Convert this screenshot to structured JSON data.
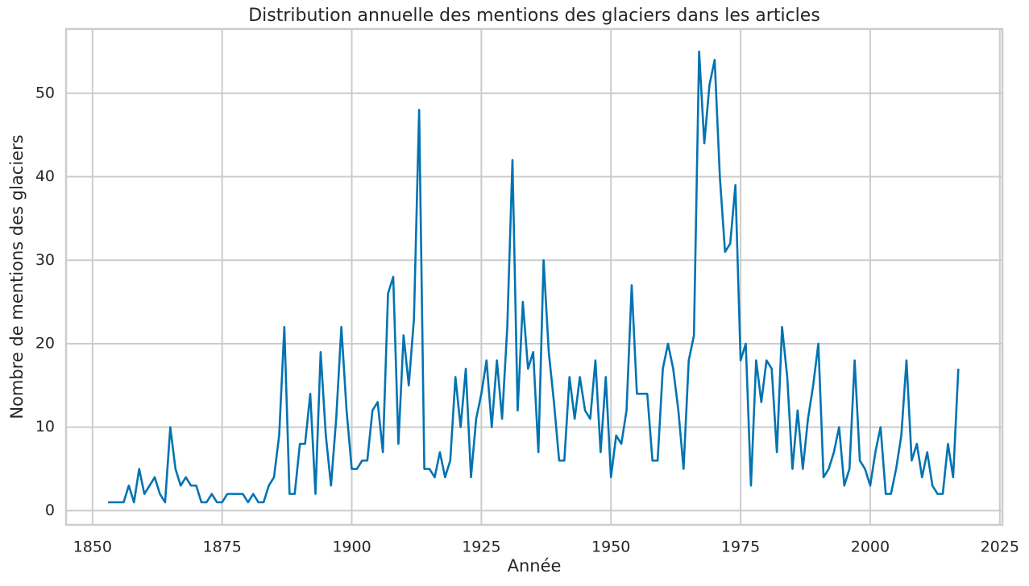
{
  "chart_data": {
    "type": "line",
    "title": "Distribution annuelle des mentions des glaciers dans les articles",
    "xlabel": "Année",
    "ylabel": "Nombre de mentions des glaciers",
    "x": [
      1853,
      1854,
      1855,
      1856,
      1857,
      1858,
      1859,
      1860,
      1861,
      1862,
      1863,
      1864,
      1865,
      1866,
      1867,
      1868,
      1869,
      1870,
      1871,
      1872,
      1873,
      1874,
      1875,
      1876,
      1877,
      1878,
      1879,
      1880,
      1881,
      1882,
      1883,
      1884,
      1885,
      1886,
      1887,
      1888,
      1889,
      1890,
      1891,
      1892,
      1893,
      1894,
      1895,
      1896,
      1897,
      1898,
      1899,
      1900,
      1901,
      1902,
      1903,
      1904,
      1905,
      1906,
      1907,
      1908,
      1909,
      1910,
      1911,
      1912,
      1913,
      1914,
      1915,
      1916,
      1917,
      1918,
      1919,
      1920,
      1921,
      1922,
      1923,
      1924,
      1925,
      1926,
      1927,
      1928,
      1929,
      1930,
      1931,
      1932,
      1933,
      1934,
      1935,
      1936,
      1937,
      1938,
      1939,
      1940,
      1941,
      1942,
      1943,
      1944,
      1945,
      1946,
      1947,
      1948,
      1949,
      1950,
      1951,
      1952,
      1953,
      1954,
      1955,
      1956,
      1957,
      1958,
      1959,
      1960,
      1961,
      1962,
      1963,
      1964,
      1965,
      1966,
      1967,
      1968,
      1969,
      1970,
      1971,
      1972,
      1973,
      1974,
      1975,
      1976,
      1977,
      1978,
      1979,
      1980,
      1981,
      1982,
      1983,
      1984,
      1985,
      1986,
      1987,
      1988,
      1989,
      1990,
      1991,
      1992,
      1993,
      1994,
      1995,
      1996,
      1997,
      1998,
      1999,
      2000,
      2001,
      2002,
      2003,
      2004,
      2005,
      2006,
      2007,
      2008,
      2009,
      2010,
      2011,
      2012,
      2013,
      2014,
      2015,
      2016,
      2017
    ],
    "series": [
      {
        "name": "mentions",
        "color": "#0173b2",
        "values": [
          1,
          1,
          1,
          1,
          3,
          1,
          5,
          2,
          3,
          4,
          2,
          1,
          10,
          5,
          3,
          4,
          3,
          3,
          1,
          1,
          2,
          1,
          1,
          2,
          2,
          2,
          2,
          1,
          2,
          1,
          1,
          3,
          4,
          9,
          22,
          2,
          2,
          8,
          8,
          14,
          2,
          19,
          9,
          3,
          11,
          22,
          12,
          5,
          5,
          6,
          6,
          12,
          13,
          7,
          26,
          28,
          8,
          21,
          15,
          23,
          48,
          5,
          5,
          4,
          7,
          4,
          6,
          16,
          10,
          17,
          4,
          11,
          14,
          18,
          10,
          18,
          11,
          22,
          42,
          12,
          25,
          17,
          19,
          7,
          30,
          19,
          13,
          6,
          6,
          16,
          11,
          16,
          12,
          11,
          18,
          7,
          16,
          4,
          9,
          8,
          12,
          27,
          14,
          14,
          14,
          6,
          6,
          17,
          20,
          17,
          12,
          5,
          18,
          21,
          55,
          44,
          51,
          54,
          40,
          31,
          32,
          39,
          18,
          20,
          3,
          18,
          13,
          18,
          17,
          7,
          22,
          16,
          5,
          12,
          5,
          11,
          15,
          20,
          4,
          5,
          7,
          10,
          3,
          5,
          18,
          6,
          5,
          3,
          7,
          10,
          2,
          2,
          5,
          9,
          18,
          6,
          8,
          4,
          7,
          3,
          2,
          2,
          8,
          4,
          17
        ]
      }
    ],
    "xlim": [
      1844.9,
      2025.5
    ],
    "ylim": [
      -1.7,
      57.7
    ],
    "xticks": [
      1850,
      1875,
      1900,
      1925,
      1950,
      1975,
      2000,
      2025
    ],
    "yticks": [
      0,
      10,
      20,
      30,
      40,
      50
    ],
    "grid": true
  }
}
